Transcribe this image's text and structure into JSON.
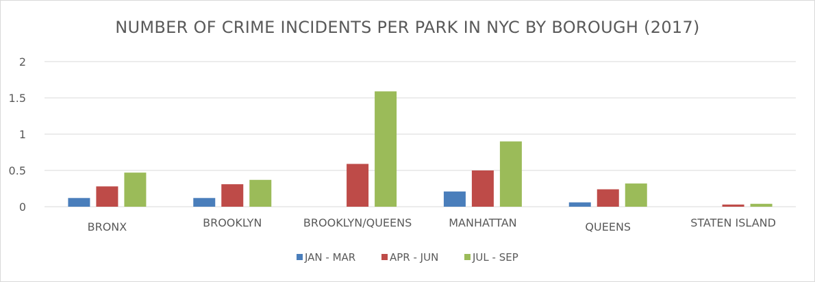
{
  "chart_data": {
    "type": "bar",
    "title": "NUMBER OF CRIME INCIDENTS PER PARK IN NYC BY BOROUGH (2017)",
    "categories": [
      "BRONX",
      "BROOKLYN",
      "BROOKLYN/QUEENS",
      "MANHATTAN",
      "QUEENS",
      "STATEN ISLAND"
    ],
    "series": [
      {
        "name": "JAN - MAR",
        "color": "#4a7ebb",
        "values": [
          0.12,
          0.12,
          0,
          0.21,
          0.06,
          0
        ]
      },
      {
        "name": "APR - JUN",
        "color": "#be4b48",
        "values": [
          0.28,
          0.31,
          0.59,
          0.5,
          0.24,
          0.03
        ]
      },
      {
        "name": "JUL - SEP",
        "color": "#9bbb59",
        "values": [
          0.47,
          0.37,
          1.59,
          0.9,
          0.32,
          0.04
        ]
      }
    ],
    "yticks": [
      "0",
      "0.5",
      "1",
      "1.5",
      "2"
    ],
    "ylim": [
      0,
      2
    ],
    "grid": true,
    "legend_position": "bottom"
  }
}
